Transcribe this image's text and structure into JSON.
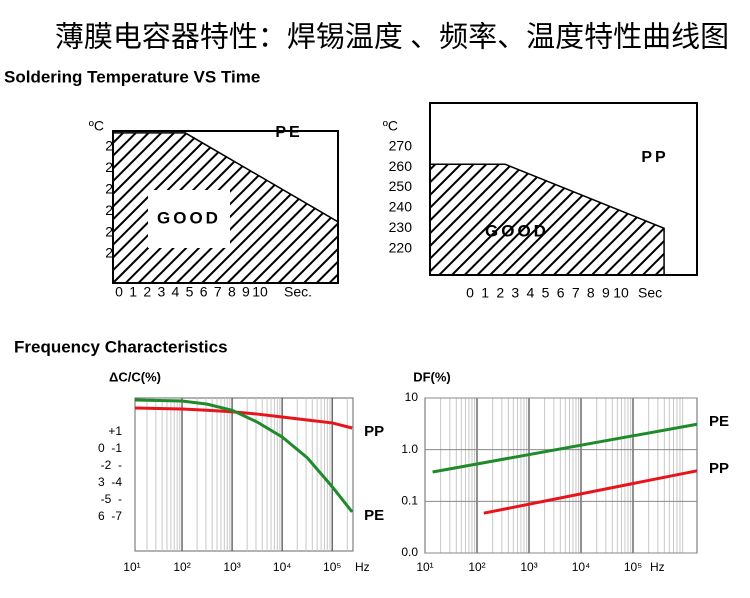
{
  "title": "薄膜电容器特性：焊锡温度 、频率、温度特性曲线图",
  "sections": [
    "Soldering Temperature VS Time",
    "Frequency Characteristics"
  ],
  "chart_data": [
    {
      "type": "area",
      "region_label": "PE",
      "annotation": "GOOD",
      "y_unit": "ºC",
      "x_label": "Sec.",
      "x": [
        -0.43,
        4.7,
        15.53
      ],
      "values": [
        276.6,
        276.6,
        235
      ],
      "xlim": [
        -0.43,
        15.53
      ],
      "ylim": [
        206.4,
        277.5
      ],
      "xticks": [
        0,
        1,
        2,
        3,
        4,
        5,
        6,
        7,
        8,
        9,
        10
      ],
      "yticks": [
        {
          "value": 270,
          "label": "2"
        },
        {
          "value": 260,
          "label": "2"
        },
        {
          "value": 250,
          "label": "2"
        },
        {
          "value": 240,
          "label": "2"
        },
        {
          "value": 230,
          "label": "2"
        },
        {
          "value": 220,
          "label": "2"
        }
      ],
      "white_box": true
    },
    {
      "type": "area",
      "region_label": "PP",
      "annotation": "GOOD",
      "y_unit": "ºC",
      "x_label": "Sec",
      "x": [
        -2.65,
        2.32,
        12.85
      ],
      "values": [
        261.4,
        261.4,
        230
      ],
      "xlim": [
        -2.65,
        15.03
      ],
      "ylim": [
        207.1,
        291.4
      ],
      "xticks": [
        0,
        1,
        2,
        3,
        4,
        5,
        6,
        7,
        8,
        9,
        10
      ],
      "yticks": [
        270,
        260,
        250,
        240,
        230,
        220
      ],
      "white_box": false
    },
    {
      "type": "line",
      "y_label": "ΔC/C(%)",
      "x_label": "Hz",
      "xlog": true,
      "grid": "x",
      "y_axis_texts": [
        "+1",
        "0  -1",
        "-2  -",
        "3  -4",
        "-5  -",
        "6  -7"
      ],
      "x": [
        11.5,
        100,
        316,
        1000,
        3162,
        10000,
        31623,
        100000,
        250000
      ],
      "xlim": [
        11.5,
        260000
      ],
      "ylim": [
        -8,
        2
      ],
      "xticks": [
        {
          "value": 10,
          "label": "10¹"
        },
        {
          "value": 100,
          "label": "10²"
        },
        {
          "value": 1000,
          "label": "10³"
        },
        {
          "value": 10000,
          "label": "10⁴"
        },
        {
          "value": 100000,
          "label": "10⁵"
        }
      ],
      "series": [
        {
          "name": "PP",
          "color": "#e8141c",
          "values": [
            1.35,
            1.28,
            1.2,
            1.1,
            0.95,
            0.76,
            0.56,
            0.37,
            0.04
          ]
        },
        {
          "name": "PE",
          "color": "#1f8a2a",
          "values": [
            1.87,
            1.8,
            1.6,
            1.2,
            0.43,
            -0.55,
            -1.9,
            -3.8,
            -5.45
          ]
        }
      ]
    },
    {
      "type": "line",
      "y_label": "DF(%)",
      "x_label": "Hz",
      "xlog": true,
      "ylog": true,
      "grid": "both",
      "xlim": [
        10,
        1700000
      ],
      "ylim": [
        0.01,
        10
      ],
      "xticks": [
        {
          "value": 10,
          "label": "10¹"
        },
        {
          "value": 100,
          "label": "10²"
        },
        {
          "value": 1000,
          "label": "10³"
        },
        {
          "value": 10000,
          "label": "10⁴"
        },
        {
          "value": 100000,
          "label": "10⁵"
        }
      ],
      "yticks": [
        10,
        {
          "value": 1,
          "label": "1.0"
        },
        0.1,
        {
          "value": 0.01,
          "label": "0.0"
        }
      ],
      "series": [
        {
          "name": "PE",
          "color": "#1f8a2a",
          "x": [
            14,
            1700000
          ],
          "values": [
            0.37,
            3.1
          ]
        },
        {
          "name": "PP",
          "color": "#e8141c",
          "x": [
            135,
            1700000
          ],
          "values": [
            0.059,
            0.39
          ]
        }
      ]
    }
  ]
}
